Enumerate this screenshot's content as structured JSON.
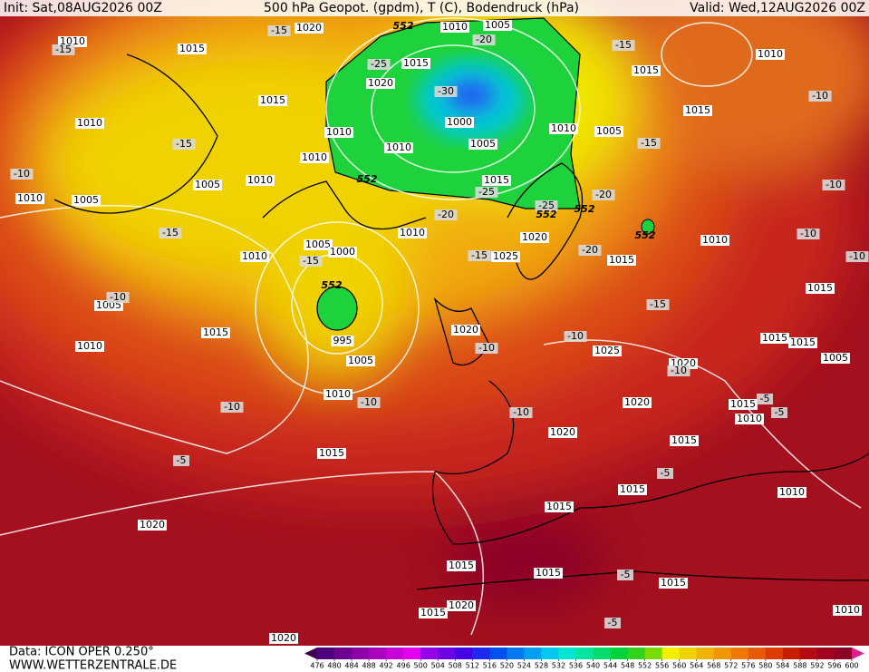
{
  "header": {
    "init": "Init: Sat,08AUG2026 00Z",
    "title": "500 hPa Geopot. (gpdm), T (C), Bodendruck (hPa)",
    "valid": "Valid: Wed,12AUG2026 00Z"
  },
  "footer": {
    "data": "Data: ICON OPER 0.250°",
    "site": "WWW.WETTERZENTRALE.DE"
  },
  "colorbar": {
    "ticks": [
      476,
      480,
      484,
      488,
      492,
      496,
      500,
      504,
      508,
      512,
      516,
      520,
      524,
      528,
      532,
      536,
      540,
      544,
      548,
      552,
      556,
      560,
      564,
      568,
      572,
      576,
      580,
      584,
      588,
      592,
      596,
      600
    ],
    "colors": [
      "#3c0050",
      "#50007a",
      "#6e0090",
      "#8c00a8",
      "#aa00c0",
      "#c800d8",
      "#e600f0",
      "#9600e6",
      "#6e00e6",
      "#4600e6",
      "#1e28f0",
      "#0050f0",
      "#0078f0",
      "#00a0f0",
      "#00c8f0",
      "#00e6d2",
      "#00e6a0",
      "#00dc6e",
      "#00d23c",
      "#32d21e",
      "#78dc00",
      "#f0f000",
      "#f0d200",
      "#f0b400",
      "#f09600",
      "#f07800",
      "#e65a00",
      "#dc3c00",
      "#c81e00",
      "#b40a14",
      "#a0001e",
      "#8c0028",
      "#e01e8c"
    ]
  },
  "map_labels": {
    "isobars": [
      "1010",
      "1015",
      "1020",
      "1010",
      "1005",
      "1015",
      "1020",
      "1000",
      "1005",
      "1010",
      "1010",
      "1010",
      "1010",
      "1015",
      "1005",
      "1010",
      "1005",
      "1010",
      "1010",
      "1005",
      "1015",
      "1010",
      "1015",
      "1015",
      "1020",
      "1025",
      "1010",
      "1005",
      "1000",
      "1010",
      "1005",
      "1010",
      "1015",
      "995",
      "1005",
      "1010",
      "1015",
      "1020",
      "1015",
      "1010",
      "1015",
      "1015",
      "1015",
      "1005",
      "1025",
      "1020",
      "1020",
      "1020",
      "1015",
      "1010",
      "1015",
      "1015",
      "1010",
      "1015",
      "1015",
      "1015",
      "1015",
      "1020",
      "1020",
      "1015",
      "1010",
      "1020"
    ],
    "temperatures": [
      "-15",
      "-15",
      "-15",
      "-25",
      "-20",
      "-30",
      "-15",
      "-10",
      "-15",
      "-10",
      "-25",
      "-25",
      "-20",
      "-20",
      "-10",
      "-15",
      "-15",
      "-15",
      "-20",
      "-15",
      "-10",
      "-10",
      "-10",
      "-10",
      "-10",
      "-10",
      "-10",
      "-10",
      "-10",
      "-5",
      "-5",
      "-5",
      "-5",
      "-5",
      "-5"
    ],
    "heights": [
      "552",
      "552",
      "552",
      "552",
      "552",
      "552"
    ]
  }
}
